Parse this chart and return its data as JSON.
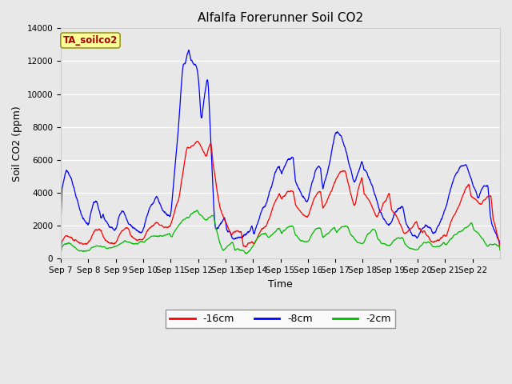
{
  "title": "Alfalfa Forerunner Soil CO2",
  "ylabel": "Soil CO2 (ppm)",
  "xlabel": "Time",
  "ylim": [
    0,
    14000
  ],
  "yticks": [
    0,
    2000,
    4000,
    6000,
    8000,
    10000,
    12000,
    14000
  ],
  "plot_bg_color": "#e8e8e8",
  "fig_bg_color": "#e8e8e8",
  "line_colors": {
    "16cm": "#ff0000",
    "8cm": "#0000ff",
    "2cm": "#00bb00"
  },
  "annotation_text": "TA_soilco2",
  "annotation_color": "#aa0000",
  "annotation_bg": "#ffff99",
  "annotation_border": "#888800",
  "n_days": 16,
  "start_day": 7,
  "tick_labels": [
    "Sep 7",
    "Sep 8",
    "Sep 9",
    "Sep 10",
    "Sep 11",
    "Sep 12",
    "Sep 13",
    "Sep 14",
    "Sep 15",
    "Sep 16",
    "Sep 17",
    "Sep 18",
    "Sep 19",
    "Sep 20",
    "Sep 21",
    "Sep 22"
  ],
  "title_fontsize": 11,
  "axis_fontsize": 9,
  "tick_fontsize": 7.5
}
